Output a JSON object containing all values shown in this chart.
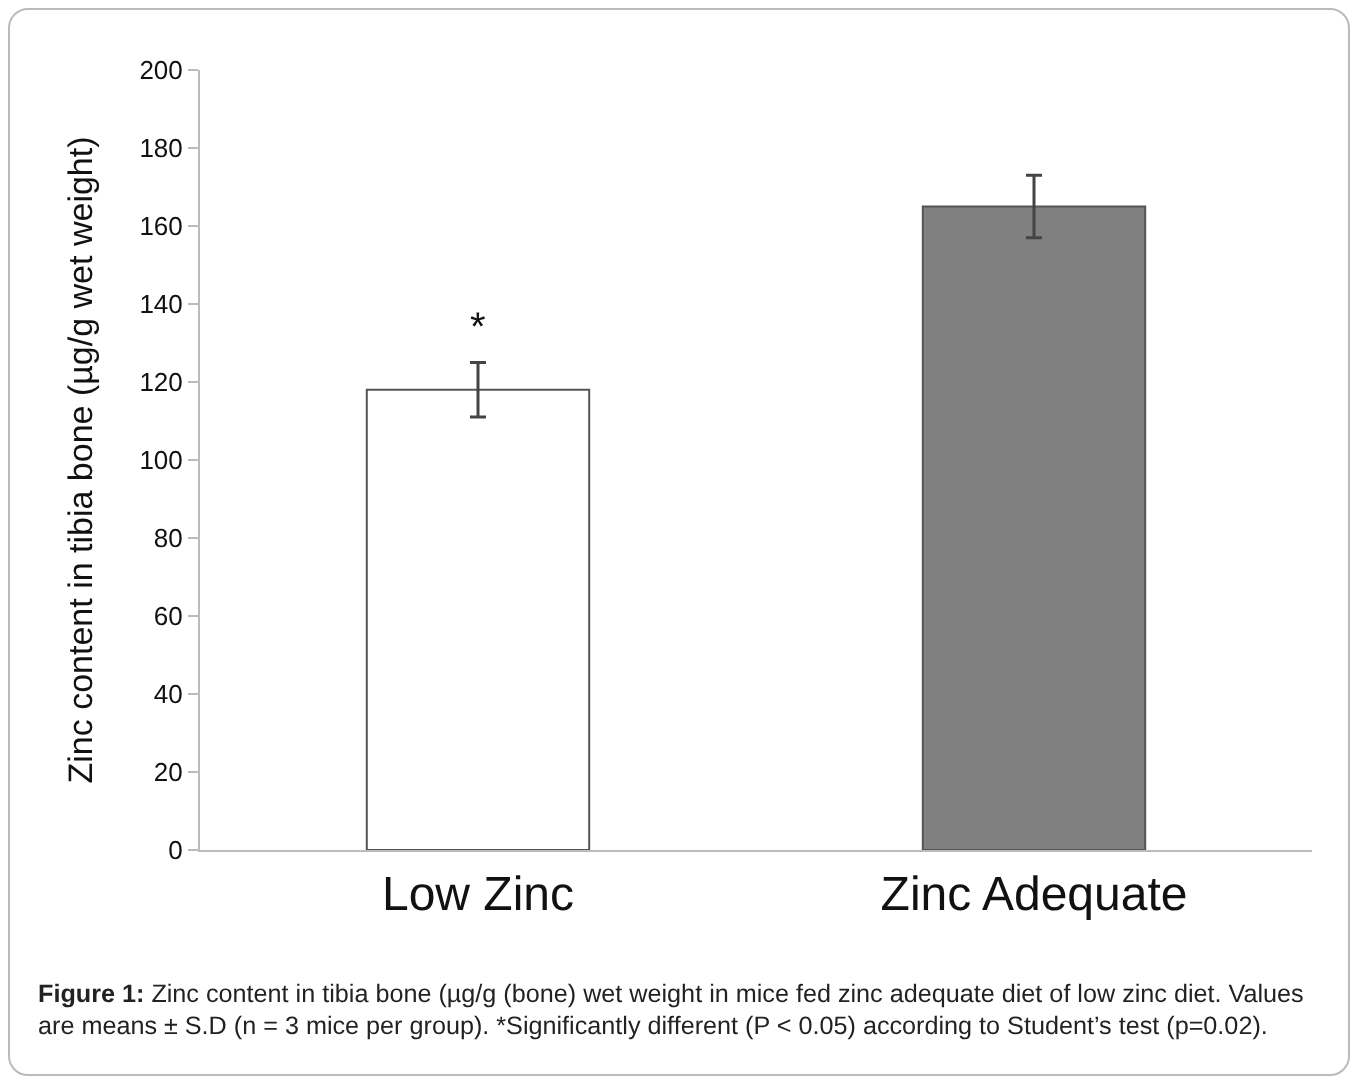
{
  "chart_data": {
    "type": "bar",
    "ylabel": "Zinc content in tibia bone (µg/g wet weight)",
    "categories": [
      "Low Zinc",
      "Zinc Adequate"
    ],
    "values": [
      118,
      165
    ],
    "colors": [
      "#ffffff",
      "#808080"
    ],
    "errors": [
      7,
      8
    ],
    "ylim": [
      0,
      200
    ],
    "yticks": [
      0,
      20,
      40,
      60,
      80,
      100,
      120,
      140,
      160,
      180,
      200
    ],
    "grid": false,
    "legend": false,
    "annotations": [
      "*",
      "Figure 1:",
      "Zinc content in tibia bone (µg/g (bone) wet weight in mice fed zinc adequate diet of low zinc diet. Values are means ± S.D (n = 3 mice per group). *Significantly different (P < 0.05) according to Student’s test (p=0.02)."
    ]
  }
}
